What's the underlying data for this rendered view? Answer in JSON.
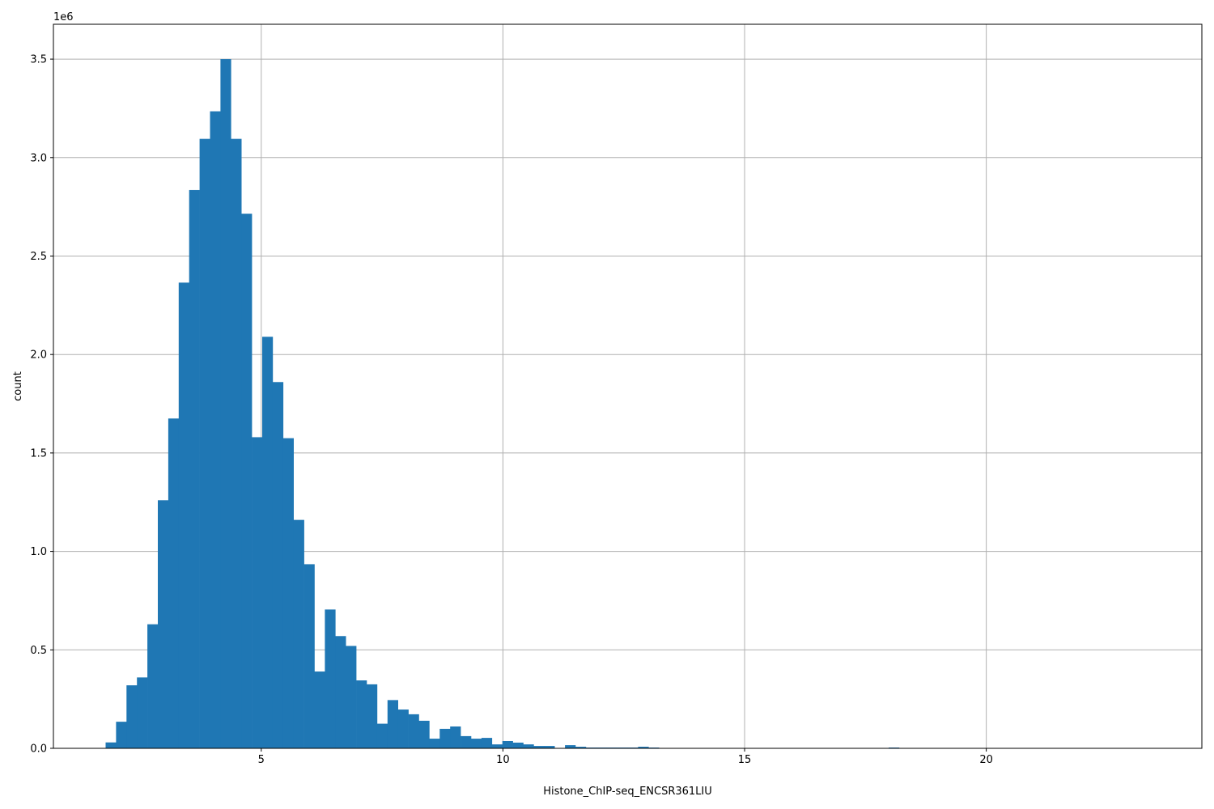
{
  "chart_data": {
    "type": "bar",
    "subtype": "histogram",
    "title": "",
    "xlabel": "Histone_ChIP-seq_ENCSR361LIU",
    "ylabel": "count",
    "y_offset_label": "1e6",
    "xlim": [
      0.7,
      24.46
    ],
    "ylim": [
      0,
      3677000
    ],
    "grid": true,
    "bar_color": "#1f77b4",
    "bin_start": 1.78,
    "bin_width": 0.216,
    "xticks": [
      5,
      10,
      15,
      20
    ],
    "xtick_labels": [
      "5",
      "10",
      "15",
      "20"
    ],
    "yticks": [
      0,
      500000,
      1000000,
      1500000,
      2000000,
      2500000,
      3000000,
      3500000
    ],
    "ytick_labels": [
      "0.0",
      "0.5",
      "1.0",
      "1.5",
      "2.0",
      "2.5",
      "3.0",
      "3.5"
    ],
    "values": [
      30000,
      135000,
      320000,
      360000,
      630000,
      1260000,
      1675000,
      2365000,
      2835000,
      3095000,
      3235000,
      3500000,
      3095000,
      2715000,
      1580000,
      2090000,
      1860000,
      1575000,
      1160000,
      935000,
      390000,
      705000,
      570000,
      520000,
      345000,
      325000,
      125000,
      245000,
      197000,
      173000,
      140000,
      49000,
      99000,
      111000,
      62000,
      49000,
      53000,
      20000,
      37000,
      29000,
      20000,
      12000,
      12000,
      0,
      16000,
      8000,
      4000,
      4000,
      4000,
      4000,
      4000,
      8000,
      4000,
      0,
      0,
      0,
      0,
      0,
      0,
      0,
      0,
      0,
      0,
      0,
      0,
      0,
      0,
      0,
      0,
      0,
      0,
      0,
      0,
      0,
      0,
      4000,
      0,
      0,
      0,
      0,
      0,
      0,
      0,
      0,
      0,
      0,
      0,
      0,
      0,
      0,
      0,
      0,
      0,
      0,
      0,
      0,
      0,
      0,
      0,
      0
    ]
  }
}
